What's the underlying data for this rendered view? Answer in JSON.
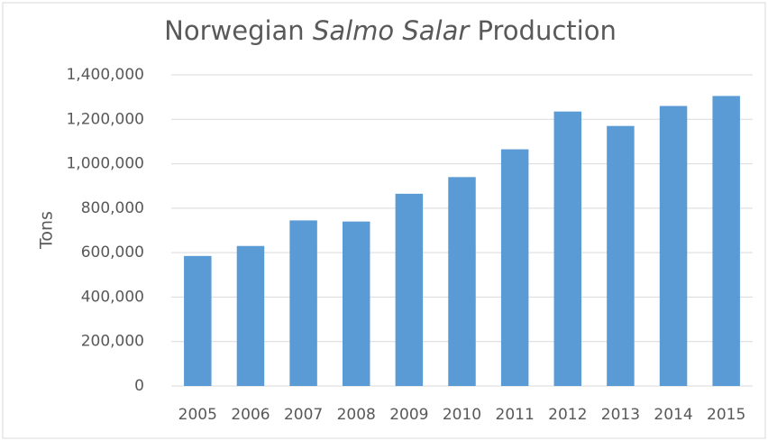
{
  "chart_data": {
    "type": "bar",
    "title": [
      "Norwegian",
      "Salmo Salar",
      "Production"
    ],
    "y_label": "Tons",
    "categories": [
      "2005",
      "2006",
      "2007",
      "2008",
      "2009",
      "2010",
      "2011",
      "2012",
      "2013",
      "2014",
      "2015"
    ],
    "values": [
      585000,
      630000,
      745000,
      740000,
      865000,
      940000,
      1065000,
      1235000,
      1170000,
      1260000,
      1305000
    ],
    "color": "#5b9bd5",
    "ylim": [
      0,
      1400000
    ],
    "yticks": [
      0,
      {
        "value": 200000,
        "label": "200,000"
      },
      {
        "value": 400000,
        "label": "400,000"
      },
      {
        "value": 600000,
        "label": "600,000"
      },
      {
        "value": 800000,
        "label": "800,000"
      },
      {
        "value": 1000000,
        "label": "1,000,000"
      },
      {
        "value": 1200000,
        "label": "1,200,000"
      },
      {
        "value": 1400000,
        "label": "1,400,000"
      }
    ],
    "grid": true
  }
}
